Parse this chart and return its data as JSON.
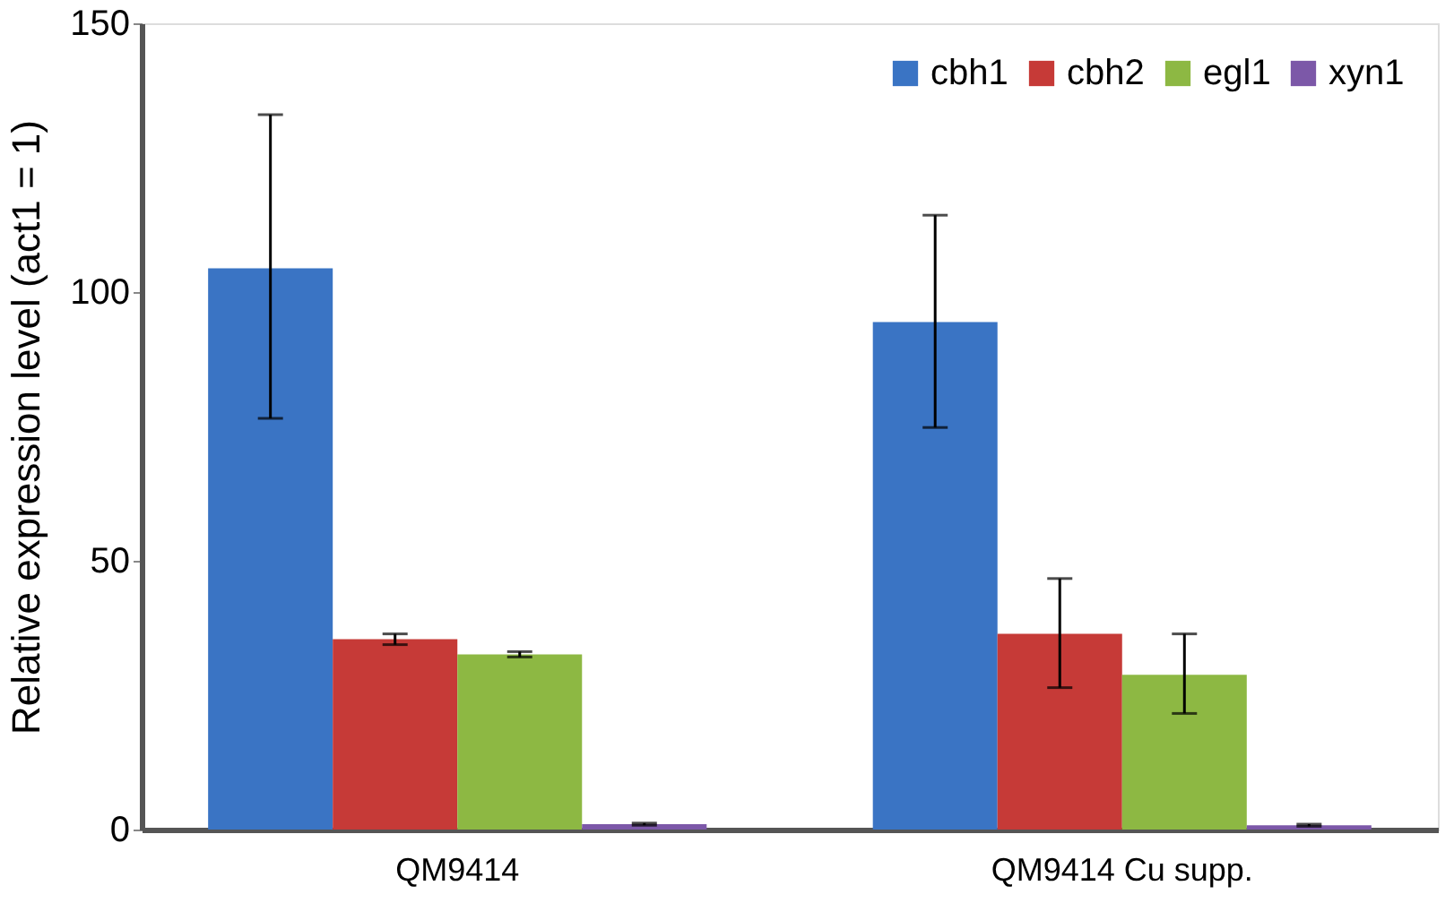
{
  "chart_data": {
    "type": "bar",
    "ylabel": "Relative expression level (act1 = 1)",
    "categories": [
      "QM9414",
      "QM9414 Cu supp."
    ],
    "series": [
      {
        "name": "cbh1",
        "color": "#3a74c4",
        "values": [
          104.4,
          94.4
        ],
        "errors": [
          [
            76.5,
            133
          ],
          [
            74.8,
            114.3
          ]
        ]
      },
      {
        "name": "cbh2",
        "color": "#c63a37",
        "values": [
          35.4,
          36.4
        ],
        "errors": [
          1,
          [
            26.4,
            46.7
          ]
        ]
      },
      {
        "name": "egl1",
        "color": "#8db843",
        "values": [
          32.6,
          28.8
        ],
        "errors": [
          0.5,
          [
            21.6,
            36.4
          ]
        ]
      },
      {
        "name": "xyn1",
        "color": "#7c58a8",
        "values": [
          1,
          0.8
        ],
        "errors": [
          0.2,
          0.2
        ]
      }
    ],
    "ylim": [
      0,
      150
    ],
    "yticks": [
      0,
      50,
      100,
      150
    ],
    "grid": false,
    "legend": "top right"
  }
}
